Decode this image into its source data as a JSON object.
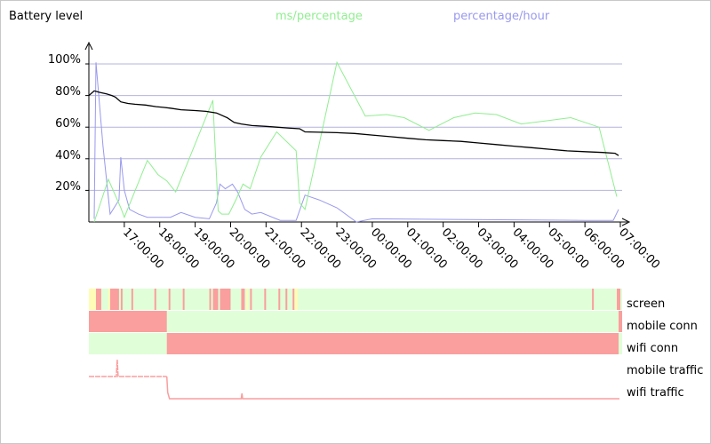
{
  "title": "Battery level",
  "legend": [
    {
      "label": "ms/percentage",
      "color": "#90ee90"
    },
    {
      "label": "percentage/hour",
      "color": "#9999ee"
    }
  ],
  "chart_data": {
    "type": "line",
    "title": "Battery level",
    "yticks": [
      "20%",
      "40%",
      "60%",
      "80%",
      "100%"
    ],
    "ylim": [
      0,
      100
    ],
    "xlim_hours": [
      16.0,
      31.05
    ],
    "xticks": [
      "17:00:00",
      "18:00:00",
      "19:00:00",
      "20:00:00",
      "21:00:00",
      "22:00:00",
      "23:00:00",
      "00:00:00",
      "01:00:00",
      "02:00:00",
      "03:00:00",
      "04:00:00",
      "05:00:00",
      "06:00:00",
      "07:00:00"
    ],
    "xtick_hours": [
      17,
      18,
      19,
      20,
      21,
      22,
      23,
      24,
      25,
      26,
      27,
      28,
      29,
      30,
      31
    ],
    "grid": true,
    "series": [
      {
        "name": "Battery level",
        "color": "#000000",
        "x": [
          16.0,
          16.15,
          16.3,
          16.5,
          16.65,
          16.75,
          16.9,
          17.1,
          17.3,
          17.6,
          17.9,
          18.1,
          18.3,
          18.6,
          19.0,
          19.3,
          19.6,
          19.9,
          20.1,
          20.3,
          20.6,
          21.0,
          21.3,
          21.6,
          21.95,
          22.1,
          22.5,
          23.0,
          23.5,
          24.0,
          24.5,
          25.0,
          25.5,
          26.0,
          26.5,
          27.0,
          27.5,
          28.0,
          28.5,
          29.0,
          29.5,
          30.0,
          30.5,
          30.85,
          30.95
        ],
        "y": [
          80,
          83,
          82,
          81,
          80,
          79,
          76,
          75,
          74.5,
          74,
          73,
          72.5,
          72,
          71,
          70.5,
          70,
          69,
          66,
          63,
          62,
          61,
          60.5,
          60,
          59.5,
          59,
          57,
          56.8,
          56.5,
          56,
          55,
          54,
          53,
          52,
          51.5,
          51,
          50,
          49,
          48,
          47,
          46,
          45,
          44.5,
          44,
          43.5,
          42
        ]
      },
      {
        "name": "ms/percentage",
        "color": "#90ee90",
        "x": [
          16.15,
          16.55,
          16.9,
          17.0,
          17.65,
          17.95,
          18.2,
          18.45,
          19.5,
          19.65,
          19.75,
          19.95,
          20.15,
          20.35,
          20.55,
          20.85,
          21.3,
          21.85,
          21.95,
          22.1,
          23.0,
          23.8,
          24.4,
          24.9,
          25.6,
          26.3,
          26.9,
          27.5,
          28.2,
          28.9,
          29.6,
          30.4,
          30.9
        ],
        "y": [
          0,
          27,
          9,
          3,
          39,
          30,
          26,
          19,
          77,
          7,
          5,
          5,
          14,
          24,
          21,
          41,
          57,
          45,
          12,
          8,
          101,
          67,
          68,
          66,
          58,
          66,
          69,
          68,
          62,
          64,
          66,
          60,
          16
        ]
      },
      {
        "name": "percentage/hour",
        "color": "#9999ee",
        "x": [
          16.15,
          16.2,
          16.4,
          16.6,
          16.85,
          16.9,
          17.0,
          17.15,
          17.4,
          17.65,
          18.0,
          18.3,
          18.6,
          19.0,
          19.4,
          19.6,
          19.7,
          19.85,
          20.05,
          20.2,
          20.4,
          20.6,
          20.85,
          21.4,
          21.85,
          22.1,
          22.5,
          23.0,
          23.55,
          24.0,
          30.0,
          30.8,
          30.95
        ],
        "y": [
          2,
          101,
          48,
          5,
          14,
          41,
          20,
          8,
          5,
          3,
          3,
          3,
          6,
          3,
          2,
          12,
          24,
          21,
          24,
          19,
          8,
          5,
          6,
          1,
          1,
          17,
          14,
          9,
          0,
          2,
          1,
          1,
          8
        ]
      }
    ]
  },
  "strips": {
    "labels": [
      "screen",
      "mobile conn",
      "wifi conn",
      "mobile traffic",
      "wifi traffic"
    ],
    "on_color": "#fa9e9e",
    "off_color": "#e0ffd8",
    "yellow_color": "#fffcb8",
    "screen_on_hours": [
      [
        16.2,
        16.35
      ],
      [
        16.6,
        16.85
      ],
      [
        16.9,
        16.95
      ],
      [
        17.2,
        17.25
      ],
      [
        17.85,
        17.9
      ],
      [
        18.25,
        18.3
      ],
      [
        18.65,
        18.7
      ],
      [
        19.4,
        19.45
      ],
      [
        19.5,
        19.65
      ],
      [
        19.7,
        20.0
      ],
      [
        20.3,
        20.4
      ],
      [
        20.55,
        20.6
      ],
      [
        20.95,
        21.0
      ],
      [
        21.35,
        21.4
      ],
      [
        21.55,
        21.6
      ],
      [
        21.75,
        21.8
      ],
      [
        30.2,
        30.25
      ],
      [
        30.9,
        31.0
      ]
    ],
    "screen_yellow_hours": [
      [
        16.0,
        16.2
      ],
      [
        16.55,
        16.6
      ],
      [
        20.45,
        20.5
      ],
      [
        21.8,
        21.9
      ]
    ],
    "mobile_conn_on_hours": [
      [
        16.0,
        18.2
      ],
      [
        30.95,
        31.05
      ]
    ],
    "wifi_conn_on_hours": [
      [
        18.2,
        30.95
      ]
    ],
    "mobile_traffic_spike_hour": 16.8
  }
}
